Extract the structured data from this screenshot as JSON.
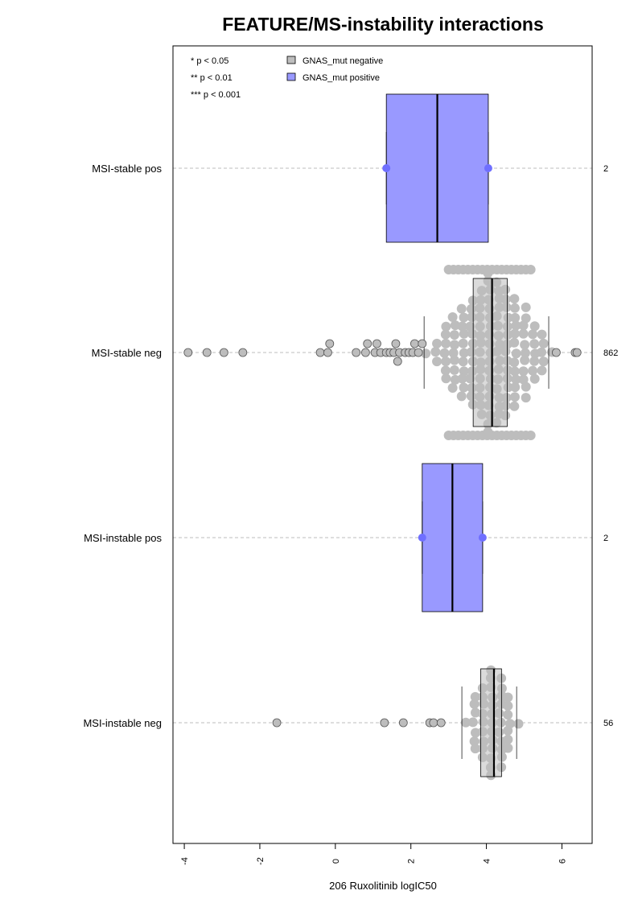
{
  "chart_data": {
    "type": "box",
    "orientation": "horizontal",
    "title": "FEATURE/MS-instability interactions",
    "xlabel": "206 Ruxolitinib logIC50",
    "xlim": [
      -4.3,
      6.8
    ],
    "xticks": [
      -4,
      -2,
      0,
      2,
      4,
      6
    ],
    "grid": "horizontal dashed",
    "legend_position": "top-left",
    "legend": {
      "significance": [
        "* p < 0.05",
        "** p < 0.01",
        "*** p < 0.001"
      ],
      "entries": [
        {
          "label": "GNAS_mut negative",
          "color": "#bebebe"
        },
        {
          "label": "GNAS_mut positive",
          "color": "#9999ff"
        }
      ]
    },
    "groups": [
      {
        "label": "MSI-stable pos",
        "n": "2",
        "color": "#9999ff",
        "point_color": "#6f6fff",
        "whisker_low": 1.35,
        "q1": 1.35,
        "median": 2.7,
        "q3": 4.05,
        "whisker_high": 4.05,
        "points": [
          1.35,
          4.05
        ]
      },
      {
        "label": "MSI-stable neg",
        "n": "862",
        "color": "#bebebe",
        "point_color": "#bdbdbd",
        "whisker_low": 2.35,
        "q1": 3.65,
        "median": 4.15,
        "q3": 4.55,
        "whisker_high": 5.65,
        "outliers": [
          -3.9,
          -3.4,
          -2.95,
          -2.45,
          -0.4,
          -0.2,
          -0.15,
          0.55,
          0.8,
          0.85,
          1.05,
          1.1,
          1.2,
          1.35,
          1.45,
          1.55,
          1.6,
          1.65,
          1.7,
          1.85,
          1.95,
          2.05,
          2.1,
          2.2,
          2.3,
          5.85,
          6.35,
          6.4
        ]
      },
      {
        "label": "MSI-instable pos",
        "n": "2",
        "color": "#9999ff",
        "point_color": "#6f6fff",
        "whisker_low": 2.3,
        "q1": 2.3,
        "median": 3.1,
        "q3": 3.9,
        "whisker_high": 3.9,
        "points": [
          2.3,
          3.9
        ]
      },
      {
        "label": "MSI-instable neg",
        "n": "56",
        "color": "#bebebe",
        "point_color": "#bdbdbd",
        "whisker_low": 3.35,
        "q1": 3.85,
        "median": 4.2,
        "q3": 4.4,
        "whisker_high": 4.8,
        "outliers": [
          -1.55,
          1.3,
          1.8,
          2.5,
          2.6,
          2.8
        ]
      }
    ]
  }
}
